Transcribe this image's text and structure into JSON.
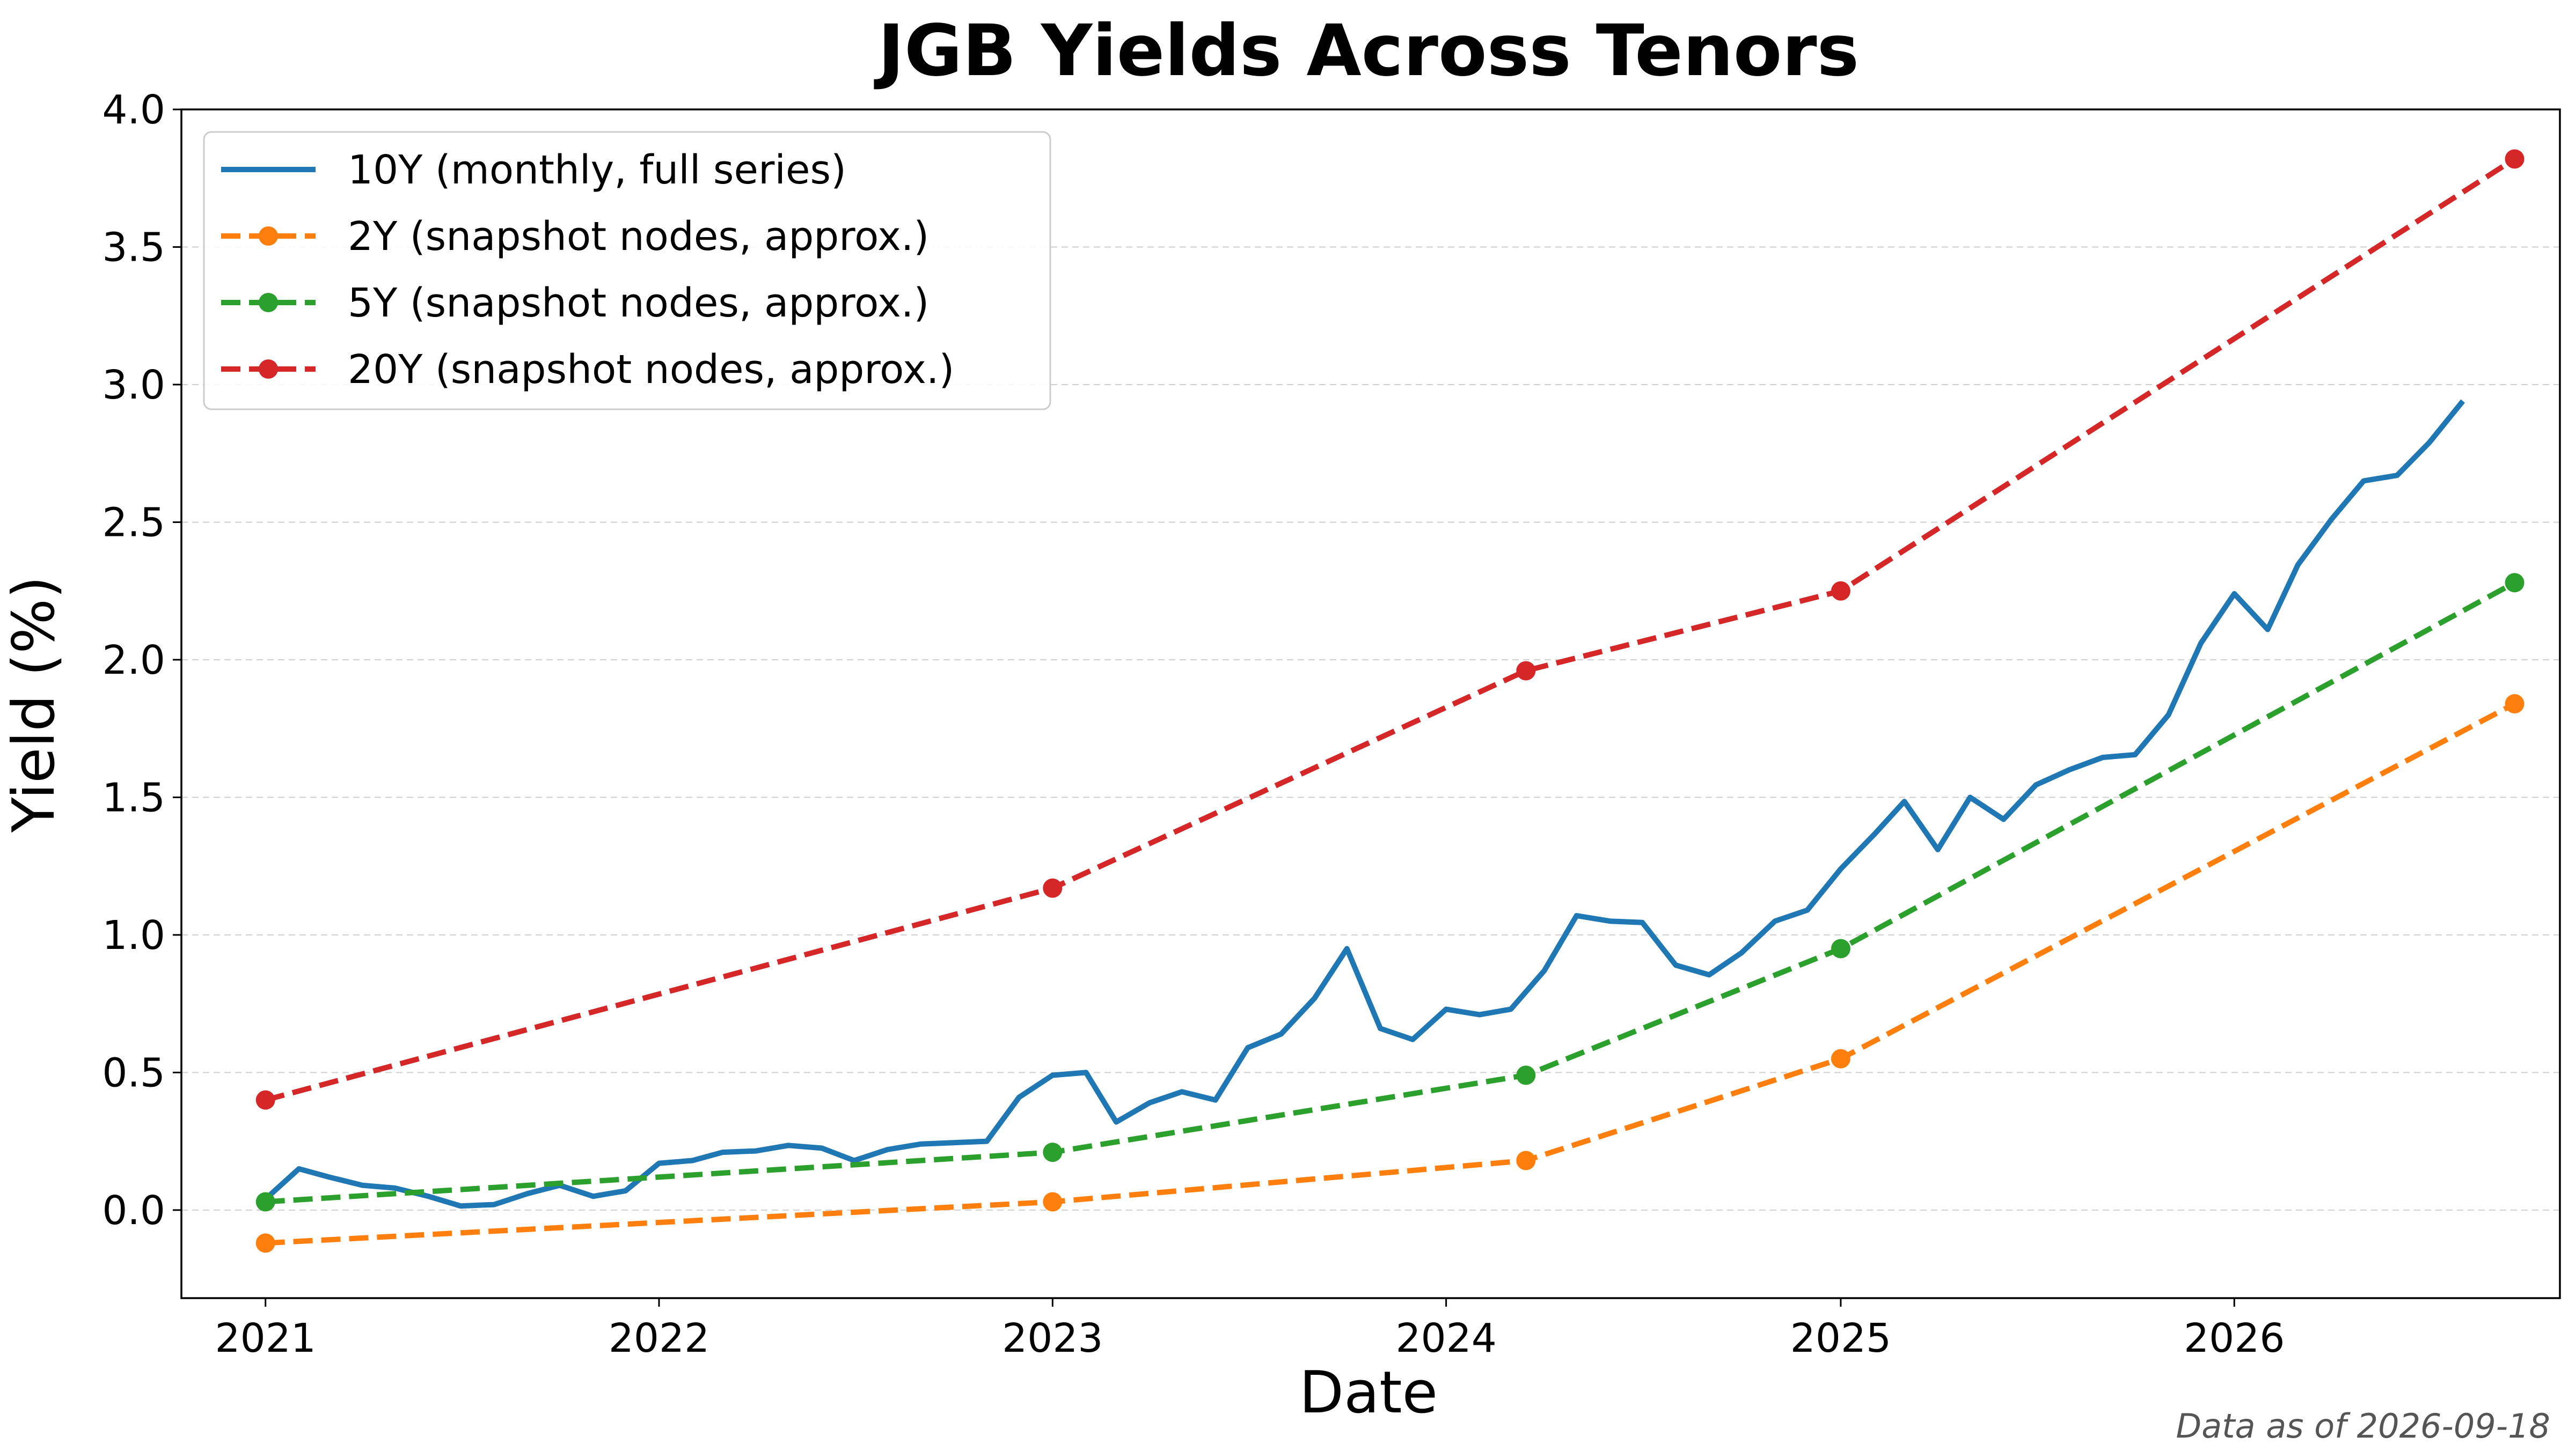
{
  "chart_data": {
    "type": "line",
    "title": "JGB Yields Across Tenors",
    "xlabel": "Date",
    "ylabel": "Yield (%)",
    "note": "Data as of 2026-09-18",
    "xlim": [
      "2020-10-15",
      "2026-10-30"
    ],
    "ylim": [
      -0.32,
      4.0
    ],
    "x_ticks": [
      {
        "value": "2021-01-01",
        "label": "2021"
      },
      {
        "value": "2022-01-01",
        "label": "2022"
      },
      {
        "value": "2023-01-01",
        "label": "2023"
      },
      {
        "value": "2024-01-01",
        "label": "2024"
      },
      {
        "value": "2025-01-01",
        "label": "2025"
      },
      {
        "value": "2026-01-01",
        "label": "2026"
      }
    ],
    "y_ticks": [
      {
        "value": 0.0,
        "label": "0.0"
      },
      {
        "value": 0.5,
        "label": "0.5"
      },
      {
        "value": 1.0,
        "label": "1.0"
      },
      {
        "value": 1.5,
        "label": "1.5"
      },
      {
        "value": 2.0,
        "label": "2.0"
      },
      {
        "value": 2.5,
        "label": "2.5"
      },
      {
        "value": 3.0,
        "label": "3.0"
      },
      {
        "value": 3.5,
        "label": "3.5"
      },
      {
        "value": 4.0,
        "label": "4.0"
      }
    ],
    "grid": "y-axis, dashed",
    "legend_position": "top-left",
    "series": [
      {
        "name": "10Y (monthly, full series)",
        "color": "#1f77b4",
        "style": "solid",
        "markers": false,
        "points": [
          [
            "2021-01-01",
            0.04
          ],
          [
            "2021-02-01",
            0.15
          ],
          [
            "2021-03-01",
            0.12
          ],
          [
            "2021-04-01",
            0.09
          ],
          [
            "2021-05-01",
            0.08
          ],
          [
            "2021-06-01",
            0.05
          ],
          [
            "2021-07-01",
            0.015
          ],
          [
            "2021-08-01",
            0.02
          ],
          [
            "2021-09-01",
            0.06
          ],
          [
            "2021-10-01",
            0.09
          ],
          [
            "2021-11-01",
            0.05
          ],
          [
            "2021-12-01",
            0.07
          ],
          [
            "2022-01-01",
            0.17
          ],
          [
            "2022-02-01",
            0.18
          ],
          [
            "2022-03-01",
            0.21
          ],
          [
            "2022-04-01",
            0.215
          ],
          [
            "2022-05-01",
            0.235
          ],
          [
            "2022-06-01",
            0.225
          ],
          [
            "2022-07-01",
            0.18
          ],
          [
            "2022-08-01",
            0.22
          ],
          [
            "2022-09-01",
            0.24
          ],
          [
            "2022-10-01",
            0.245
          ],
          [
            "2022-11-01",
            0.25
          ],
          [
            "2022-12-01",
            0.41
          ],
          [
            "2023-01-01",
            0.49
          ],
          [
            "2023-02-01",
            0.5
          ],
          [
            "2023-03-01",
            0.32
          ],
          [
            "2023-04-01",
            0.39
          ],
          [
            "2023-05-01",
            0.43
          ],
          [
            "2023-06-01",
            0.4
          ],
          [
            "2023-07-01",
            0.59
          ],
          [
            "2023-08-01",
            0.64
          ],
          [
            "2023-09-01",
            0.77
          ],
          [
            "2023-10-01",
            0.95
          ],
          [
            "2023-11-01",
            0.66
          ],
          [
            "2023-12-01",
            0.62
          ],
          [
            "2024-01-01",
            0.73
          ],
          [
            "2024-02-01",
            0.71
          ],
          [
            "2024-03-01",
            0.73
          ],
          [
            "2024-04-01",
            0.87
          ],
          [
            "2024-05-01",
            1.07
          ],
          [
            "2024-06-01",
            1.05
          ],
          [
            "2024-07-01",
            1.045
          ],
          [
            "2024-08-01",
            0.89
          ],
          [
            "2024-09-01",
            0.855
          ],
          [
            "2024-10-01",
            0.935
          ],
          [
            "2024-11-01",
            1.05
          ],
          [
            "2024-12-01",
            1.09
          ],
          [
            "2025-01-01",
            1.24
          ],
          [
            "2025-02-01",
            1.365
          ],
          [
            "2025-03-01",
            1.485
          ],
          [
            "2025-04-01",
            1.31
          ],
          [
            "2025-05-01",
            1.5
          ],
          [
            "2025-06-01",
            1.42
          ],
          [
            "2025-07-01",
            1.545
          ],
          [
            "2025-08-01",
            1.6
          ],
          [
            "2025-09-01",
            1.645
          ],
          [
            "2025-10-01",
            1.655
          ],
          [
            "2025-11-01",
            1.8
          ],
          [
            "2025-12-01",
            2.06
          ],
          [
            "2026-01-01",
            2.24
          ],
          [
            "2026-02-01",
            2.11
          ],
          [
            "2026-03-01",
            2.345
          ],
          [
            "2026-04-01",
            2.51
          ],
          [
            "2026-05-01",
            2.65
          ],
          [
            "2026-06-01",
            2.67
          ],
          [
            "2026-07-01",
            2.79
          ],
          [
            "2026-08-01",
            2.94
          ]
        ]
      },
      {
        "name": "2Y (snapshot nodes, approx.)",
        "color": "#ff7f0e",
        "style": "dashed",
        "markers": true,
        "points": [
          [
            "2021-01-01",
            -0.12
          ],
          [
            "2023-01-01",
            0.03
          ],
          [
            "2024-03-15",
            0.18
          ],
          [
            "2025-01-01",
            0.55
          ],
          [
            "2026-09-18",
            1.84
          ]
        ]
      },
      {
        "name": "5Y (snapshot nodes, approx.)",
        "color": "#2ca02c",
        "style": "dashed",
        "markers": true,
        "points": [
          [
            "2021-01-01",
            0.03
          ],
          [
            "2023-01-01",
            0.21
          ],
          [
            "2024-03-15",
            0.49
          ],
          [
            "2025-01-01",
            0.95
          ],
          [
            "2026-09-18",
            2.28
          ]
        ]
      },
      {
        "name": "20Y (snapshot nodes, approx.)",
        "color": "#d62728",
        "style": "dashed",
        "markers": true,
        "points": [
          [
            "2021-01-01",
            0.4
          ],
          [
            "2023-01-01",
            1.17
          ],
          [
            "2024-03-15",
            1.96
          ],
          [
            "2025-01-01",
            2.25
          ],
          [
            "2026-09-18",
            3.82
          ]
        ]
      }
    ]
  }
}
